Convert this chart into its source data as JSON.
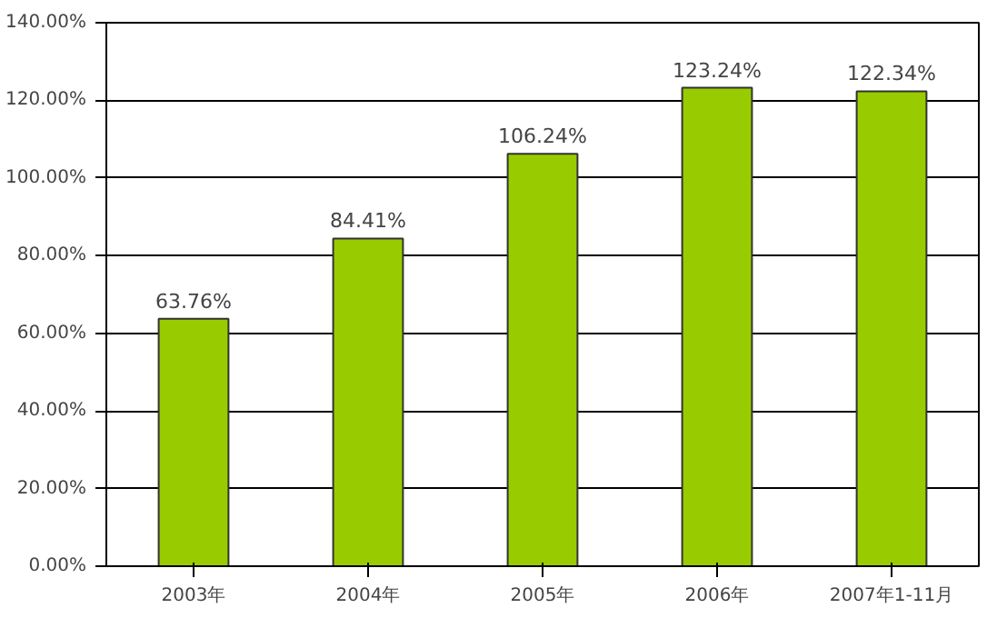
{
  "chart_data": {
    "type": "bar",
    "categories": [
      "2003年",
      "2004年",
      "2005年",
      "2006年",
      "2007年1-11月"
    ],
    "values": [
      63.76,
      84.41,
      106.24,
      123.24,
      122.34
    ],
    "value_labels": [
      "63.76%",
      "84.41%",
      "106.24%",
      "123.24%",
      "122.34%"
    ],
    "color": "#99cc00",
    "ylim": [
      0,
      140
    ],
    "yticks": [
      {
        "value": 0,
        "label": "0.00%"
      },
      {
        "value": 20,
        "label": "20.00%"
      },
      {
        "value": 40,
        "label": "40.00%"
      },
      {
        "value": 60,
        "label": "60.00%"
      },
      {
        "value": 80,
        "label": "80.00%"
      },
      {
        "value": 100,
        "label": "100.00%"
      },
      {
        "value": 120,
        "label": "120.00%"
      },
      {
        "value": 140,
        "label": "140.00%"
      }
    ],
    "grid": "y"
  }
}
